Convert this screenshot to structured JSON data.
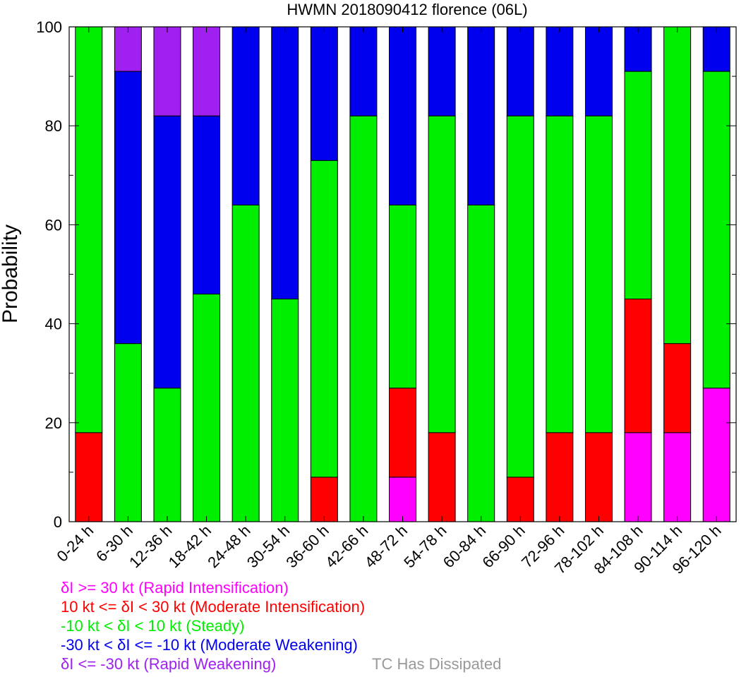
{
  "chart_data": {
    "type": "bar",
    "stacked": true,
    "title": "HWMN 2018090412 florence (06L)",
    "xlabel": "",
    "ylabel": "Probability",
    "ylim": [
      0,
      100
    ],
    "yticks": [
      0,
      20,
      40,
      60,
      80,
      100
    ],
    "grid": false,
    "categories": [
      "0-24 h",
      "6-30 h",
      "12-36 h",
      "18-42 h",
      "24-48 h",
      "30-54 h",
      "36-60 h",
      "42-66 h",
      "48-72 h",
      "54-78 h",
      "60-84 h",
      "66-90 h",
      "72-96 h",
      "78-102 h",
      "84-108 h",
      "90-114 h",
      "96-120 h"
    ],
    "series": [
      {
        "name": "δI >= 30 kt (Rapid Intensification)",
        "color": "#ff00ff",
        "values": [
          0,
          0,
          0,
          0,
          0,
          0,
          0,
          0,
          9,
          0,
          0,
          0,
          0,
          0,
          18,
          18,
          27
        ]
      },
      {
        "name": "10 kt <= δI < 30 kt (Moderate Intensification)",
        "color": "#ff0000",
        "values": [
          18,
          0,
          0,
          0,
          0,
          0,
          9,
          0,
          18,
          18,
          0,
          9,
          18,
          18,
          27,
          18,
          0
        ]
      },
      {
        "name": "-10 kt < δI < 10 kt (Steady)",
        "color": "#00ee00",
        "values": [
          82,
          36,
          27,
          46,
          64,
          45,
          64,
          82,
          37,
          64,
          64,
          73,
          64,
          64,
          46,
          64,
          64
        ]
      },
      {
        "name": "-30 kt < δI <= -10 kt (Moderate Weakening)",
        "color": "#0000ee",
        "values": [
          0,
          55,
          55,
          36,
          36,
          55,
          27,
          18,
          36,
          18,
          36,
          18,
          18,
          18,
          9,
          0,
          9
        ]
      },
      {
        "name": "δI <= -30 kt (Rapid Weakening)",
        "color": "#a020f0",
        "values": [
          0,
          9,
          18,
          18,
          0,
          0,
          0,
          0,
          0,
          0,
          0,
          0,
          0,
          0,
          0,
          0,
          0
        ]
      }
    ],
    "legend_extra": {
      "label": "TC Has Dissipated",
      "color": "#999999"
    },
    "legend_position": "bottom-left"
  }
}
